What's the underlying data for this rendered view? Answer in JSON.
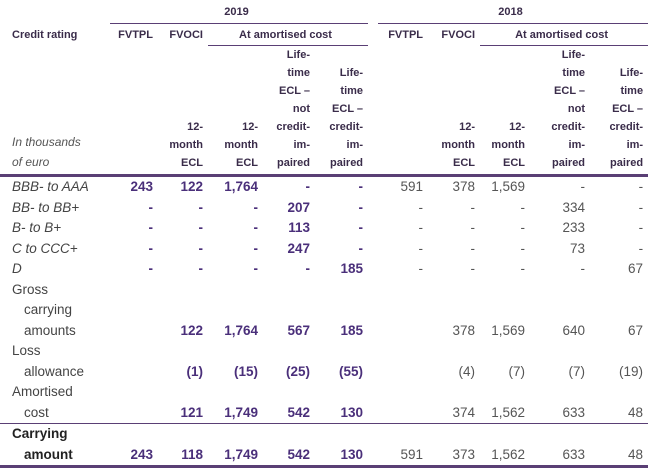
{
  "header": {
    "year_2019": "2019",
    "year_2018": "2018",
    "credit_rating": "Credit rating",
    "unit": "In thousands of euro",
    "fvtpl": "FVTPL",
    "fvoci": "FVOCI",
    "amortised": "At amortised cost",
    "twelve_month": "12-month ECL",
    "lifetime_not": "Life-time ECL – not credit-im-paired",
    "lifetime_credit": "Life-time ECL – credit-im-paired"
  },
  "rows": [
    {
      "label": [
        "BBB- to AAA"
      ],
      "italic": true,
      "values": [
        "243",
        "122",
        "1,764",
        "-",
        "-",
        "591",
        "378",
        "1,569",
        "-",
        "-"
      ]
    },
    {
      "label": [
        "BB- to BB+"
      ],
      "italic": true,
      "values": [
        "-",
        "-",
        "-",
        "207",
        "-",
        "-",
        "-",
        "-",
        "334",
        "-"
      ]
    },
    {
      "label": [
        "B- to B+"
      ],
      "italic": true,
      "values": [
        "-",
        "-",
        "-",
        "113",
        "-",
        "-",
        "-",
        "-",
        "233",
        "-"
      ]
    },
    {
      "label": [
        "C to CCC+"
      ],
      "italic": true,
      "values": [
        "-",
        "-",
        "-",
        "247",
        "-",
        "-",
        "-",
        "-",
        "73",
        "-"
      ]
    },
    {
      "label": [
        "D"
      ],
      "italic": true,
      "values": [
        "-",
        "-",
        "-",
        "-",
        "185",
        "-",
        "-",
        "-",
        "-",
        "67"
      ]
    },
    {
      "label": [
        "Gross",
        "carrying",
        "amounts"
      ],
      "values": [
        "",
        "122",
        "1,764",
        "567",
        "185",
        "",
        "378",
        "1,569",
        "640",
        "67"
      ]
    },
    {
      "label": [
        "Loss",
        "allowance"
      ],
      "values": [
        "",
        "(1)",
        "(15)",
        "(25)",
        "(55)",
        "",
        "(4)",
        "(7)",
        "(7)",
        "(19)"
      ]
    },
    {
      "label": [
        "Amortised",
        "cost"
      ],
      "values": [
        "",
        "121",
        "1,749",
        "542",
        "130",
        "",
        "374",
        "1,562",
        "633",
        "48"
      ]
    }
  ],
  "total": {
    "label": [
      "Carrying",
      "amount"
    ],
    "values": [
      "243",
      "118",
      "1,749",
      "542",
      "130",
      "591",
      "373",
      "1,562",
      "633",
      "48"
    ]
  },
  "colors": {
    "accent": "#4a2f7a",
    "rule": "#5a3f75"
  }
}
